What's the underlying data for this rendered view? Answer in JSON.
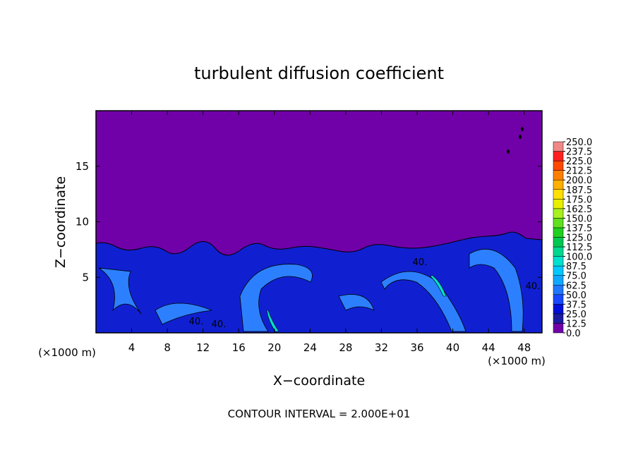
{
  "chart_data": {
    "type": "contour",
    "title": "turbulent diffusion coefficient",
    "xlabel": "X−coordinate",
    "ylabel": "Z−coordinate",
    "x_unit_label": "(×1000 m)",
    "y_unit_label": "(×1000 m)",
    "footer": "CONTOUR INTERVAL = 2.000E+01",
    "xlim": [
      0,
      50
    ],
    "xticks": [
      4,
      8,
      12,
      16,
      20,
      24,
      28,
      32,
      36,
      40,
      44,
      48
    ],
    "ylim": [
      0,
      20
    ],
    "yticks": [
      5,
      10,
      15
    ],
    "contour_labels": [
      "40.",
      "40.",
      "40.",
      "40."
    ],
    "colorbar": {
      "levels": [
        {
          "value": 0,
          "label": "0.0"
        },
        {
          "value": 12.5,
          "label": "12.5"
        },
        {
          "value": 25,
          "label": "25.0"
        },
        {
          "value": 37.5,
          "label": "37.5"
        },
        {
          "value": 50,
          "label": "50.0"
        },
        {
          "value": 62.5,
          "label": "62.5"
        },
        {
          "value": 75,
          "label": "75.0"
        },
        {
          "value": 87.5,
          "label": "87.5"
        },
        {
          "value": 100,
          "label": "100.0"
        },
        {
          "value": 112.5,
          "label": "112.5"
        },
        {
          "value": 125,
          "label": "125.0"
        },
        {
          "value": 137.5,
          "label": "137.5"
        },
        {
          "value": 150,
          "label": "150.0"
        },
        {
          "value": 162.5,
          "label": "162.5"
        },
        {
          "value": 175,
          "label": "175.0"
        },
        {
          "value": 187.5,
          "label": "187.5"
        },
        {
          "value": 200,
          "label": "200.0"
        },
        {
          "value": 212.5,
          "label": "212.5"
        },
        {
          "value": 225,
          "label": "225.0"
        },
        {
          "value": 237.5,
          "label": "237.5"
        },
        {
          "value": 250,
          "label": "250.0"
        }
      ],
      "colors": [
        "#7000a8",
        "#1c1ca0",
        "#0010d8",
        "#1848ff",
        "#2078ff",
        "#10a8ff",
        "#00c8ff",
        "#00e0d0",
        "#00d890",
        "#00c850",
        "#20d020",
        "#60e020",
        "#a8f020",
        "#e8f000",
        "#ffe000",
        "#ffb000",
        "#ff8000",
        "#ff4800",
        "#ff2020",
        "#f08888"
      ]
    }
  }
}
